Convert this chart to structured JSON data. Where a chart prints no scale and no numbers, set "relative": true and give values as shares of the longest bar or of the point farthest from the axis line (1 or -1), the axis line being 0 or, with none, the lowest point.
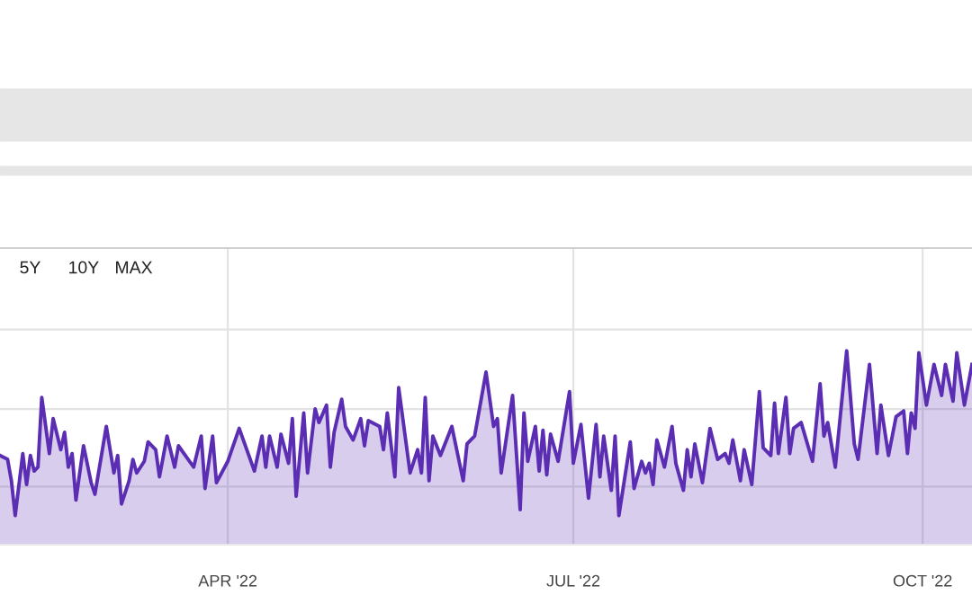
{
  "chart_data": {
    "type": "area",
    "relative": true,
    "grid": true,
    "line_style": "solid",
    "annotations": [
      "5Y",
      "10Y",
      "MAX"
    ],
    "xlim": [
      "2022-01-31",
      "2022-10-14"
    ],
    "xticks": [
      {
        "value": "2022-04-01",
        "label": "APR '22"
      },
      {
        "value": "2022-07-01",
        "label": "JUL '22"
      },
      {
        "value": "2022-10-01",
        "label": "OCT '22"
      }
    ],
    "x": [
      "2022-01-31",
      "2022-02-02",
      "2022-02-03",
      "2022-02-04",
      "2022-02-06",
      "2022-02-07",
      "2022-02-08",
      "2022-02-09",
      "2022-02-10",
      "2022-02-11",
      "2022-02-13",
      "2022-02-14",
      "2022-02-16",
      "2022-02-17",
      "2022-02-18",
      "2022-02-19",
      "2022-02-20",
      "2022-02-22",
      "2022-02-24",
      "2022-02-25",
      "2022-02-28",
      "2022-03-02",
      "2022-03-03",
      "2022-03-04",
      "2022-03-06",
      "2022-03-07",
      "2022-03-08",
      "2022-03-10",
      "2022-03-11",
      "2022-03-13",
      "2022-03-14",
      "2022-03-16",
      "2022-03-18",
      "2022-03-19",
      "2022-03-23",
      "2022-03-25",
      "2022-03-26",
      "2022-03-28",
      "2022-03-29",
      "2022-04-01",
      "2022-04-04",
      "2022-04-06",
      "2022-04-08",
      "2022-04-10",
      "2022-04-11",
      "2022-04-12",
      "2022-04-14",
      "2022-04-15",
      "2022-04-17",
      "2022-04-18",
      "2022-04-19",
      "2022-04-21",
      "2022-04-22",
      "2022-04-24",
      "2022-04-25",
      "2022-04-27",
      "2022-04-28",
      "2022-04-29",
      "2022-05-01",
      "2022-05-02",
      "2022-05-04",
      "2022-05-06",
      "2022-05-07",
      "2022-05-08",
      "2022-05-11",
      "2022-05-12",
      "2022-05-13",
      "2022-05-15",
      "2022-05-16",
      "2022-05-19",
      "2022-05-21",
      "2022-05-22",
      "2022-05-23",
      "2022-05-24",
      "2022-05-25",
      "2022-05-27",
      "2022-05-30",
      "2022-06-02",
      "2022-06-03",
      "2022-06-05",
      "2022-06-08",
      "2022-06-10",
      "2022-06-11",
      "2022-06-12",
      "2022-06-15",
      "2022-06-17",
      "2022-06-18",
      "2022-06-19",
      "2022-06-21",
      "2022-06-22",
      "2022-06-23",
      "2022-06-24",
      "2022-06-25",
      "2022-06-27",
      "2022-06-30",
      "2022-07-01",
      "2022-07-03",
      "2022-07-05",
      "2022-07-07",
      "2022-07-08",
      "2022-07-09",
      "2022-07-11",
      "2022-07-12",
      "2022-07-13",
      "2022-07-16",
      "2022-07-17",
      "2022-07-19",
      "2022-07-20",
      "2022-07-21",
      "2022-07-22",
      "2022-07-23",
      "2022-07-25",
      "2022-07-27",
      "2022-07-28",
      "2022-07-30",
      "2022-07-31",
      "2022-08-01",
      "2022-08-02",
      "2022-08-04",
      "2022-08-06",
      "2022-08-08",
      "2022-08-10",
      "2022-08-11",
      "2022-08-12",
      "2022-08-14",
      "2022-08-15",
      "2022-08-17",
      "2022-08-19",
      "2022-08-20",
      "2022-08-22",
      "2022-08-23",
      "2022-08-24",
      "2022-08-26",
      "2022-08-27",
      "2022-08-28",
      "2022-08-30",
      "2022-09-02",
      "2022-09-04",
      "2022-09-05",
      "2022-09-06",
      "2022-09-08",
      "2022-09-11",
      "2022-09-13",
      "2022-09-14",
      "2022-09-17",
      "2022-09-19",
      "2022-09-20",
      "2022-09-22",
      "2022-09-24",
      "2022-09-26",
      "2022-09-27",
      "2022-09-28",
      "2022-09-29",
      "2022-09-30",
      "2022-10-02",
      "2022-10-04",
      "2022-10-06",
      "2022-10-07",
      "2022-10-09",
      "2022-10-10",
      "2022-10-12",
      "2022-10-14"
    ],
    "series": [
      {
        "color": "#5a2db3",
        "values": [
          0.46,
          0.44,
          0.33,
          0.15,
          0.47,
          0.31,
          0.46,
          0.38,
          0.4,
          0.76,
          0.47,
          0.65,
          0.49,
          0.58,
          0.4,
          0.47,
          0.23,
          0.51,
          0.32,
          0.26,
          0.61,
          0.37,
          0.46,
          0.21,
          0.33,
          0.44,
          0.37,
          0.43,
          0.53,
          0.49,
          0.35,
          0.56,
          0.4,
          0.51,
          0.4,
          0.56,
          0.29,
          0.56,
          0.32,
          0.43,
          0.6,
          0.49,
          0.38,
          0.56,
          0.4,
          0.56,
          0.4,
          0.57,
          0.42,
          0.65,
          0.25,
          0.68,
          0.37,
          0.7,
          0.63,
          0.72,
          0.4,
          0.58,
          0.75,
          0.61,
          0.54,
          0.65,
          0.51,
          0.64,
          0.61,
          0.49,
          0.68,
          0.35,
          0.81,
          0.37,
          0.49,
          0.37,
          0.76,
          0.33,
          0.56,
          0.46,
          0.61,
          0.33,
          0.52,
          0.56,
          0.89,
          0.61,
          0.65,
          0.37,
          0.77,
          0.18,
          0.68,
          0.43,
          0.61,
          0.38,
          0.59,
          0.36,
          0.57,
          0.43,
          0.79,
          0.42,
          0.62,
          0.24,
          0.62,
          0.35,
          0.56,
          0.28,
          0.56,
          0.15,
          0.53,
          0.29,
          0.43,
          0.37,
          0.42,
          0.31,
          0.54,
          0.4,
          0.61,
          0.42,
          0.28,
          0.49,
          0.35,
          0.52,
          0.32,
          0.6,
          0.44,
          0.47,
          0.42,
          0.54,
          0.33,
          0.49,
          0.31,
          0.79,
          0.5,
          0.46,
          0.73,
          0.47,
          0.76,
          0.47,
          0.6,
          0.63,
          0.43,
          0.83,
          0.56,
          0.63,
          0.4,
          1,
          0.52,
          0.44,
          0.93,
          0.47,
          0.72,
          0.46,
          0.66,
          0.69,
          0.47,
          0.68,
          0.6,
          0.99,
          0.72,
          0.93,
          0.77,
          0.93,
          0.74,
          0.99,
          0.72,
          0.93
        ]
      }
    ]
  }
}
